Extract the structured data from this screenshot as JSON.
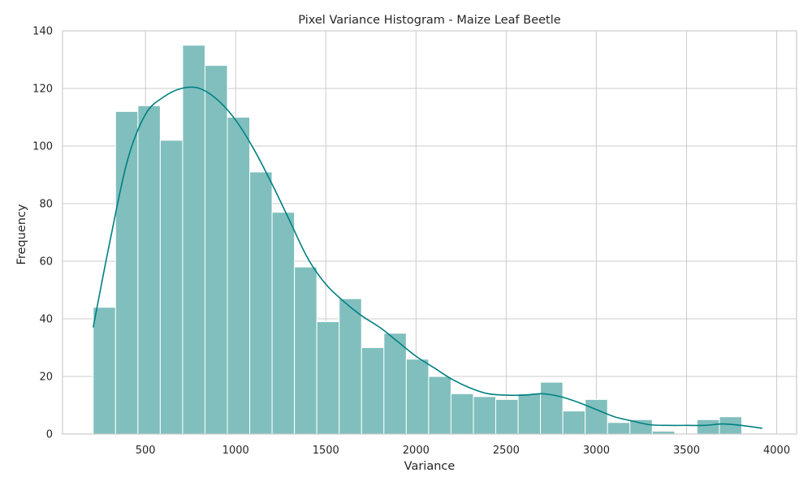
{
  "colors": {
    "bar_fill": "#80bfbe",
    "kde_line": "#008080",
    "grid": "#cccccc",
    "text": "#262626"
  },
  "chart_data": {
    "type": "bar",
    "subtype": "histogram with kde line",
    "title": "Pixel Variance Histogram - Maize Leaf Beetle",
    "xlabel": "Variance",
    "ylabel": "Frequency",
    "xlim": [
      40,
      4110
    ],
    "ylim": [
      0,
      140
    ],
    "grid": true,
    "legend": "none",
    "x_ticks": [
      500,
      1000,
      1500,
      2000,
      2500,
      3000,
      3500,
      4000
    ],
    "y_ticks": [
      0,
      20,
      40,
      60,
      80,
      100,
      120,
      140
    ],
    "bins": [
      {
        "x0": 210,
        "x1": 334,
        "count": 44
      },
      {
        "x0": 334,
        "x1": 458,
        "count": 112
      },
      {
        "x0": 458,
        "x1": 582,
        "count": 114
      },
      {
        "x0": 582,
        "x1": 706,
        "count": 102
      },
      {
        "x0": 706,
        "x1": 830,
        "count": 135
      },
      {
        "x0": 830,
        "x1": 954,
        "count": 128
      },
      {
        "x0": 954,
        "x1": 1078,
        "count": 110
      },
      {
        "x0": 1078,
        "x1": 1202,
        "count": 91
      },
      {
        "x0": 1202,
        "x1": 1326,
        "count": 77
      },
      {
        "x0": 1326,
        "x1": 1450,
        "count": 58
      },
      {
        "x0": 1450,
        "x1": 1574,
        "count": 39
      },
      {
        "x0": 1574,
        "x1": 1698,
        "count": 47
      },
      {
        "x0": 1698,
        "x1": 1822,
        "count": 30
      },
      {
        "x0": 1822,
        "x1": 1946,
        "count": 35
      },
      {
        "x0": 1946,
        "x1": 2070,
        "count": 26
      },
      {
        "x0": 2070,
        "x1": 2194,
        "count": 20
      },
      {
        "x0": 2194,
        "x1": 2318,
        "count": 14
      },
      {
        "x0": 2318,
        "x1": 2442,
        "count": 13
      },
      {
        "x0": 2442,
        "x1": 2566,
        "count": 12
      },
      {
        "x0": 2566,
        "x1": 2690,
        "count": 14
      },
      {
        "x0": 2690,
        "x1": 2814,
        "count": 18
      },
      {
        "x0": 2814,
        "x1": 2938,
        "count": 8
      },
      {
        "x0": 2938,
        "x1": 3062,
        "count": 12
      },
      {
        "x0": 3062,
        "x1": 3186,
        "count": 4
      },
      {
        "x0": 3186,
        "x1": 3310,
        "count": 5
      },
      {
        "x0": 3310,
        "x1": 3434,
        "count": 1
      },
      {
        "x0": 3434,
        "x1": 3558,
        "count": 0
      },
      {
        "x0": 3558,
        "x1": 3682,
        "count": 5
      },
      {
        "x0": 3682,
        "x1": 3806,
        "count": 6
      },
      {
        "x0": 3806,
        "x1": 3930,
        "count": 0
      }
    ],
    "kde": {
      "x": [
        210,
        300,
        400,
        500,
        600,
        700,
        800,
        900,
        1000,
        1100,
        1200,
        1300,
        1400,
        1500,
        1600,
        1700,
        1800,
        1900,
        2000,
        2100,
        2200,
        2300,
        2400,
        2500,
        2600,
        2700,
        2800,
        2900,
        3000,
        3100,
        3200,
        3300,
        3400,
        3500,
        3600,
        3700,
        3800,
        3920
      ],
      "y": [
        37,
        66,
        95,
        111,
        117,
        120,
        120,
        116,
        109,
        99,
        87,
        74,
        61,
        52,
        46,
        41,
        37,
        32,
        27,
        23,
        19,
        16,
        14,
        13.5,
        13.5,
        14,
        13,
        11,
        8.5,
        6,
        4.5,
        3.2,
        3,
        3,
        3,
        3.5,
        3,
        2
      ]
    }
  }
}
